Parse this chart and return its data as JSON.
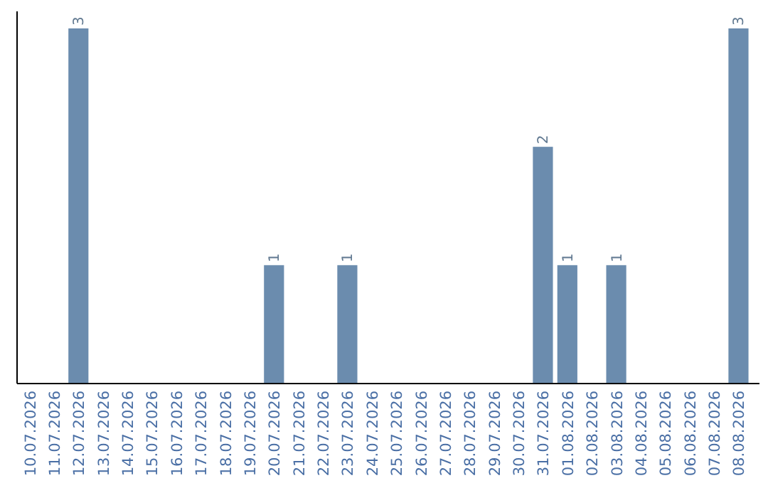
{
  "chart_data": {
    "type": "bar",
    "categories": [
      "10.07.2026",
      "11.07.2026",
      "12.07.2026",
      "13.07.2026",
      "14.07.2026",
      "15.07.2026",
      "16.07.2026",
      "17.07.2026",
      "18.07.2026",
      "19.07.2026",
      "20.07.2026",
      "21.07.2026",
      "22.07.2026",
      "23.07.2026",
      "24.07.2026",
      "25.07.2026",
      "26.07.2026",
      "27.07.2026",
      "28.07.2026",
      "29.07.2026",
      "30.07.2026",
      "31.07.2026",
      "01.08.2026",
      "02.08.2026",
      "03.08.2026",
      "04.08.2026",
      "05.08.2026",
      "06.08.2026",
      "07.08.2026",
      "08.08.2026"
    ],
    "values": [
      0,
      0,
      3,
      0,
      0,
      0,
      0,
      0,
      0,
      0,
      1,
      0,
      0,
      1,
      0,
      0,
      0,
      0,
      0,
      0,
      0,
      2,
      1,
      0,
      1,
      0,
      0,
      0,
      0,
      3
    ],
    "value_labels": [
      null,
      null,
      "3",
      null,
      null,
      null,
      null,
      null,
      null,
      null,
      "1",
      null,
      null,
      "1",
      null,
      null,
      null,
      null,
      null,
      null,
      null,
      "2",
      "1",
      null,
      "1",
      null,
      null,
      null,
      null,
      "3"
    ],
    "color": "#6b8cae",
    "tick_labels": "x",
    "grid": false
  }
}
